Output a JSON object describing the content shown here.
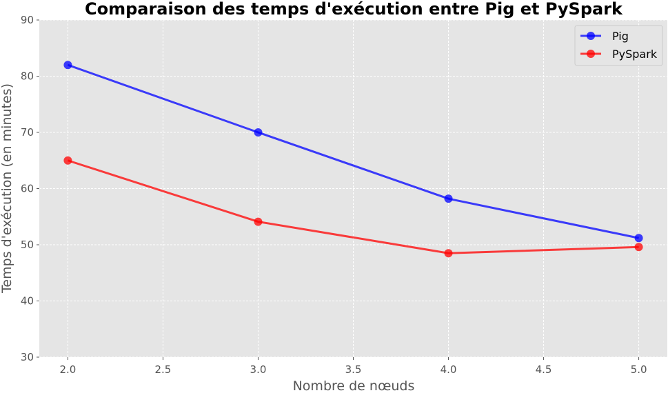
{
  "chart_data": {
    "type": "line",
    "title": "Comparaison des temps d'exécution entre Pig et PySpark",
    "xlabel": "Nombre de nœuds",
    "ylabel": "Temps d'exécution (en minutes)",
    "x": [
      2,
      3,
      4,
      5
    ],
    "xlim": [
      1.85,
      5.15
    ],
    "ylim": [
      30,
      90
    ],
    "xticks": [
      "2.0",
      "2.5",
      "3.0",
      "3.5",
      "4.0",
      "4.5",
      "5.0"
    ],
    "yticks": [
      "30",
      "40",
      "50",
      "60",
      "70",
      "80",
      "90"
    ],
    "grid": true,
    "legend_position": "top-right",
    "series": [
      {
        "name": "Pig",
        "values": [
          82,
          70,
          58.2,
          51.2
        ],
        "color": "#0000ff"
      },
      {
        "name": "PySpark",
        "values": [
          65,
          54.1,
          48.5,
          49.6
        ],
        "color": "#ff0000"
      }
    ]
  }
}
